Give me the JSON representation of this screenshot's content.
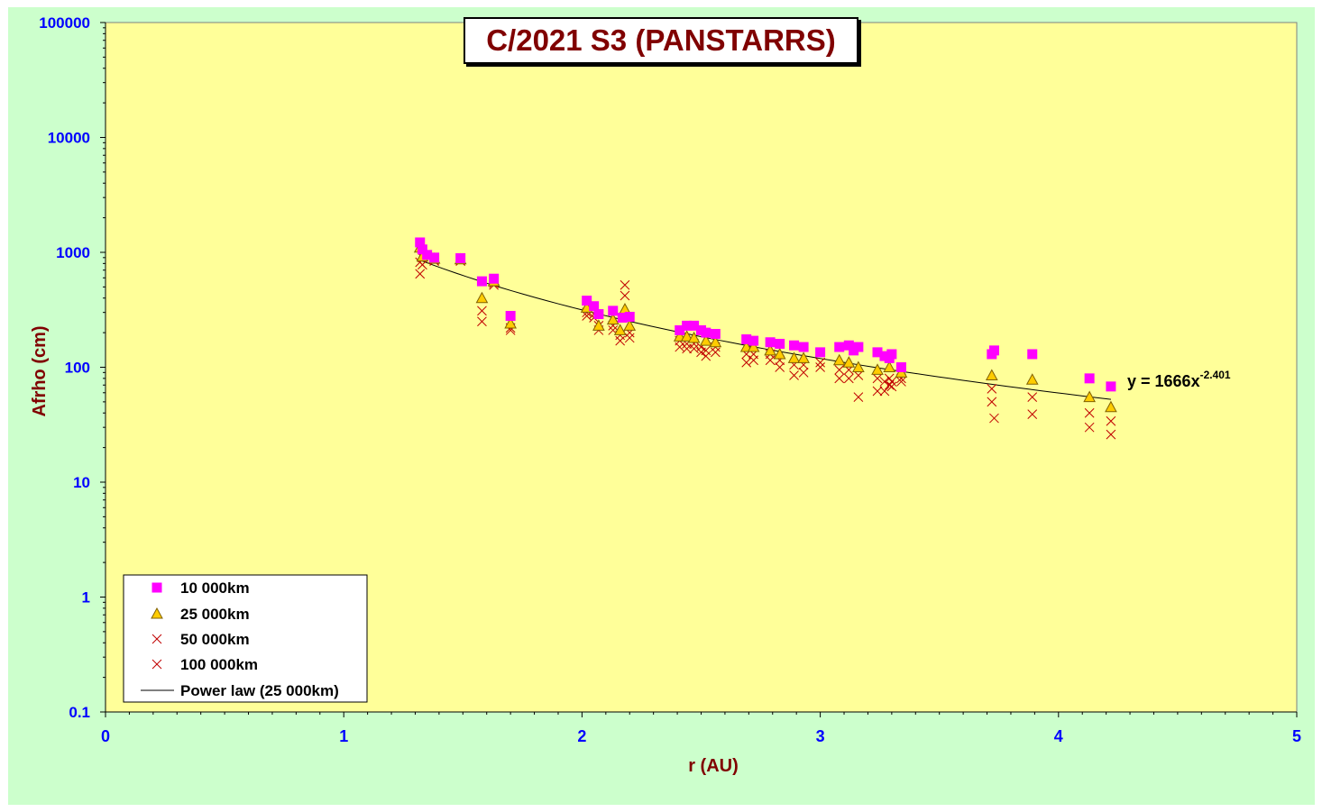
{
  "chart_data": {
    "type": "scatter",
    "title": "C/2021 S3 (PANSTARRS)",
    "xlabel": "r (AU)",
    "ylabel": "Afrho (cm)",
    "xlim": [
      0,
      5
    ],
    "ylim": [
      0.1,
      100000
    ],
    "yscale": "log",
    "x_ticks": [
      "0",
      "1",
      "2",
      "3",
      "4",
      "5"
    ],
    "y_ticks": [
      "0.1",
      "1",
      "10",
      "100",
      "1000",
      "10000",
      "100000"
    ],
    "grid": false,
    "legend_position": "bottom-left",
    "colors": {
      "plot_background": "#ffff99",
      "chart_background": "#ccffcc",
      "series_10000": "#ff00ff",
      "series_25000_fill": "#ffcc00",
      "series_crosses": "#c00000",
      "axis_text": "#0000ff",
      "title_text": "#800000"
    },
    "trendline": {
      "name": "Power law (25 000km)",
      "coefficient": 1666,
      "exponent": -2.401,
      "x_range": [
        1.32,
        4.22
      ],
      "equation_label": "y = 1666x",
      "equation_exponent_label": "-2.401"
    },
    "series": [
      {
        "name": "10 000km",
        "marker": "square",
        "points": [
          [
            1.32,
            1220
          ],
          [
            1.33,
            1060
          ],
          [
            1.35,
            950
          ],
          [
            1.38,
            900
          ],
          [
            1.49,
            890
          ],
          [
            1.58,
            560
          ],
          [
            1.63,
            590
          ],
          [
            1.7,
            280
          ],
          [
            2.02,
            380
          ],
          [
            2.05,
            340
          ],
          [
            2.07,
            290
          ],
          [
            2.13,
            310
          ],
          [
            2.17,
            270
          ],
          [
            2.2,
            275
          ],
          [
            2.41,
            210
          ],
          [
            2.44,
            230
          ],
          [
            2.47,
            230
          ],
          [
            2.5,
            210
          ],
          [
            2.52,
            200
          ],
          [
            2.56,
            195
          ],
          [
            2.69,
            175
          ],
          [
            2.72,
            170
          ],
          [
            2.79,
            165
          ],
          [
            2.83,
            160
          ],
          [
            2.89,
            155
          ],
          [
            2.93,
            150
          ],
          [
            3.0,
            135
          ],
          [
            3.08,
            150
          ],
          [
            3.12,
            155
          ],
          [
            3.14,
            140
          ],
          [
            3.16,
            150
          ],
          [
            3.24,
            135
          ],
          [
            3.27,
            125
          ],
          [
            3.29,
            120
          ],
          [
            3.3,
            130
          ],
          [
            3.34,
            100
          ],
          [
            3.72,
            130
          ],
          [
            3.73,
            140
          ],
          [
            3.89,
            130
          ],
          [
            4.13,
            80
          ],
          [
            4.22,
            68
          ]
        ]
      },
      {
        "name": "25 000km",
        "marker": "triangle",
        "points": [
          [
            1.32,
            1100
          ],
          [
            1.33,
            920
          ],
          [
            1.38,
            880
          ],
          [
            1.49,
            870
          ],
          [
            1.58,
            400
          ],
          [
            1.63,
            560
          ],
          [
            1.7,
            240
          ],
          [
            2.02,
            330
          ],
          [
            2.07,
            230
          ],
          [
            2.13,
            260
          ],
          [
            2.16,
            210
          ],
          [
            2.18,
            320
          ],
          [
            2.2,
            230
          ],
          [
            2.41,
            185
          ],
          [
            2.44,
            185
          ],
          [
            2.47,
            180
          ],
          [
            2.52,
            170
          ],
          [
            2.56,
            165
          ],
          [
            2.69,
            150
          ],
          [
            2.72,
            150
          ],
          [
            2.79,
            140
          ],
          [
            2.83,
            130
          ],
          [
            2.89,
            120
          ],
          [
            2.93,
            120
          ],
          [
            3.08,
            115
          ],
          [
            3.12,
            110
          ],
          [
            3.16,
            100
          ],
          [
            3.24,
            95
          ],
          [
            3.29,
            100
          ],
          [
            3.34,
            90
          ],
          [
            3.72,
            85
          ],
          [
            3.89,
            78
          ],
          [
            4.13,
            55
          ],
          [
            4.22,
            45
          ]
        ]
      },
      {
        "name": "50 000km",
        "marker": "x",
        "points": [
          [
            1.32,
            820
          ],
          [
            1.33,
            900
          ],
          [
            1.38,
            860
          ],
          [
            1.49,
            860
          ],
          [
            1.58,
            310
          ],
          [
            1.63,
            540
          ],
          [
            1.7,
            220
          ],
          [
            2.02,
            300
          ],
          [
            2.05,
            290
          ],
          [
            2.07,
            230
          ],
          [
            2.13,
            230
          ],
          [
            2.16,
            190
          ],
          [
            2.18,
            420
          ],
          [
            2.2,
            200
          ],
          [
            2.41,
            170
          ],
          [
            2.44,
            160
          ],
          [
            2.47,
            160
          ],
          [
            2.5,
            150
          ],
          [
            2.52,
            140
          ],
          [
            2.56,
            150
          ],
          [
            2.69,
            130
          ],
          [
            2.72,
            130
          ],
          [
            2.79,
            130
          ],
          [
            2.83,
            115
          ],
          [
            2.89,
            105
          ],
          [
            2.93,
            105
          ],
          [
            3.0,
            110
          ],
          [
            3.08,
            95
          ],
          [
            3.12,
            95
          ],
          [
            3.16,
            85
          ],
          [
            3.24,
            80
          ],
          [
            3.27,
            75
          ],
          [
            3.29,
            80
          ],
          [
            3.3,
            75
          ],
          [
            3.34,
            80
          ],
          [
            3.72,
            65
          ],
          [
            3.89,
            55
          ],
          [
            4.13,
            40
          ],
          [
            4.22,
            34
          ]
        ]
      },
      {
        "name": "100 000km",
        "marker": "x",
        "points": [
          [
            1.32,
            650
          ],
          [
            1.33,
            780
          ],
          [
            1.38,
            840
          ],
          [
            1.49,
            840
          ],
          [
            1.58,
            250
          ],
          [
            1.63,
            520
          ],
          [
            1.7,
            210
          ],
          [
            2.02,
            280
          ],
          [
            2.05,
            270
          ],
          [
            2.07,
            210
          ],
          [
            2.13,
            210
          ],
          [
            2.16,
            170
          ],
          [
            2.18,
            520
          ],
          [
            2.2,
            180
          ],
          [
            2.41,
            150
          ],
          [
            2.44,
            145
          ],
          [
            2.47,
            145
          ],
          [
            2.5,
            135
          ],
          [
            2.52,
            125
          ],
          [
            2.56,
            135
          ],
          [
            2.69,
            110
          ],
          [
            2.72,
            115
          ],
          [
            2.79,
            115
          ],
          [
            2.83,
            100
          ],
          [
            2.89,
            85
          ],
          [
            2.93,
            90
          ],
          [
            3.0,
            100
          ],
          [
            3.08,
            80
          ],
          [
            3.12,
            80
          ],
          [
            3.16,
            55
          ],
          [
            3.24,
            62
          ],
          [
            3.27,
            62
          ],
          [
            3.29,
            70
          ],
          [
            3.3,
            68
          ],
          [
            3.34,
            75
          ],
          [
            3.72,
            50
          ],
          [
            3.73,
            36
          ],
          [
            3.89,
            39
          ],
          [
            4.13,
            30
          ],
          [
            4.22,
            26
          ]
        ]
      }
    ]
  }
}
